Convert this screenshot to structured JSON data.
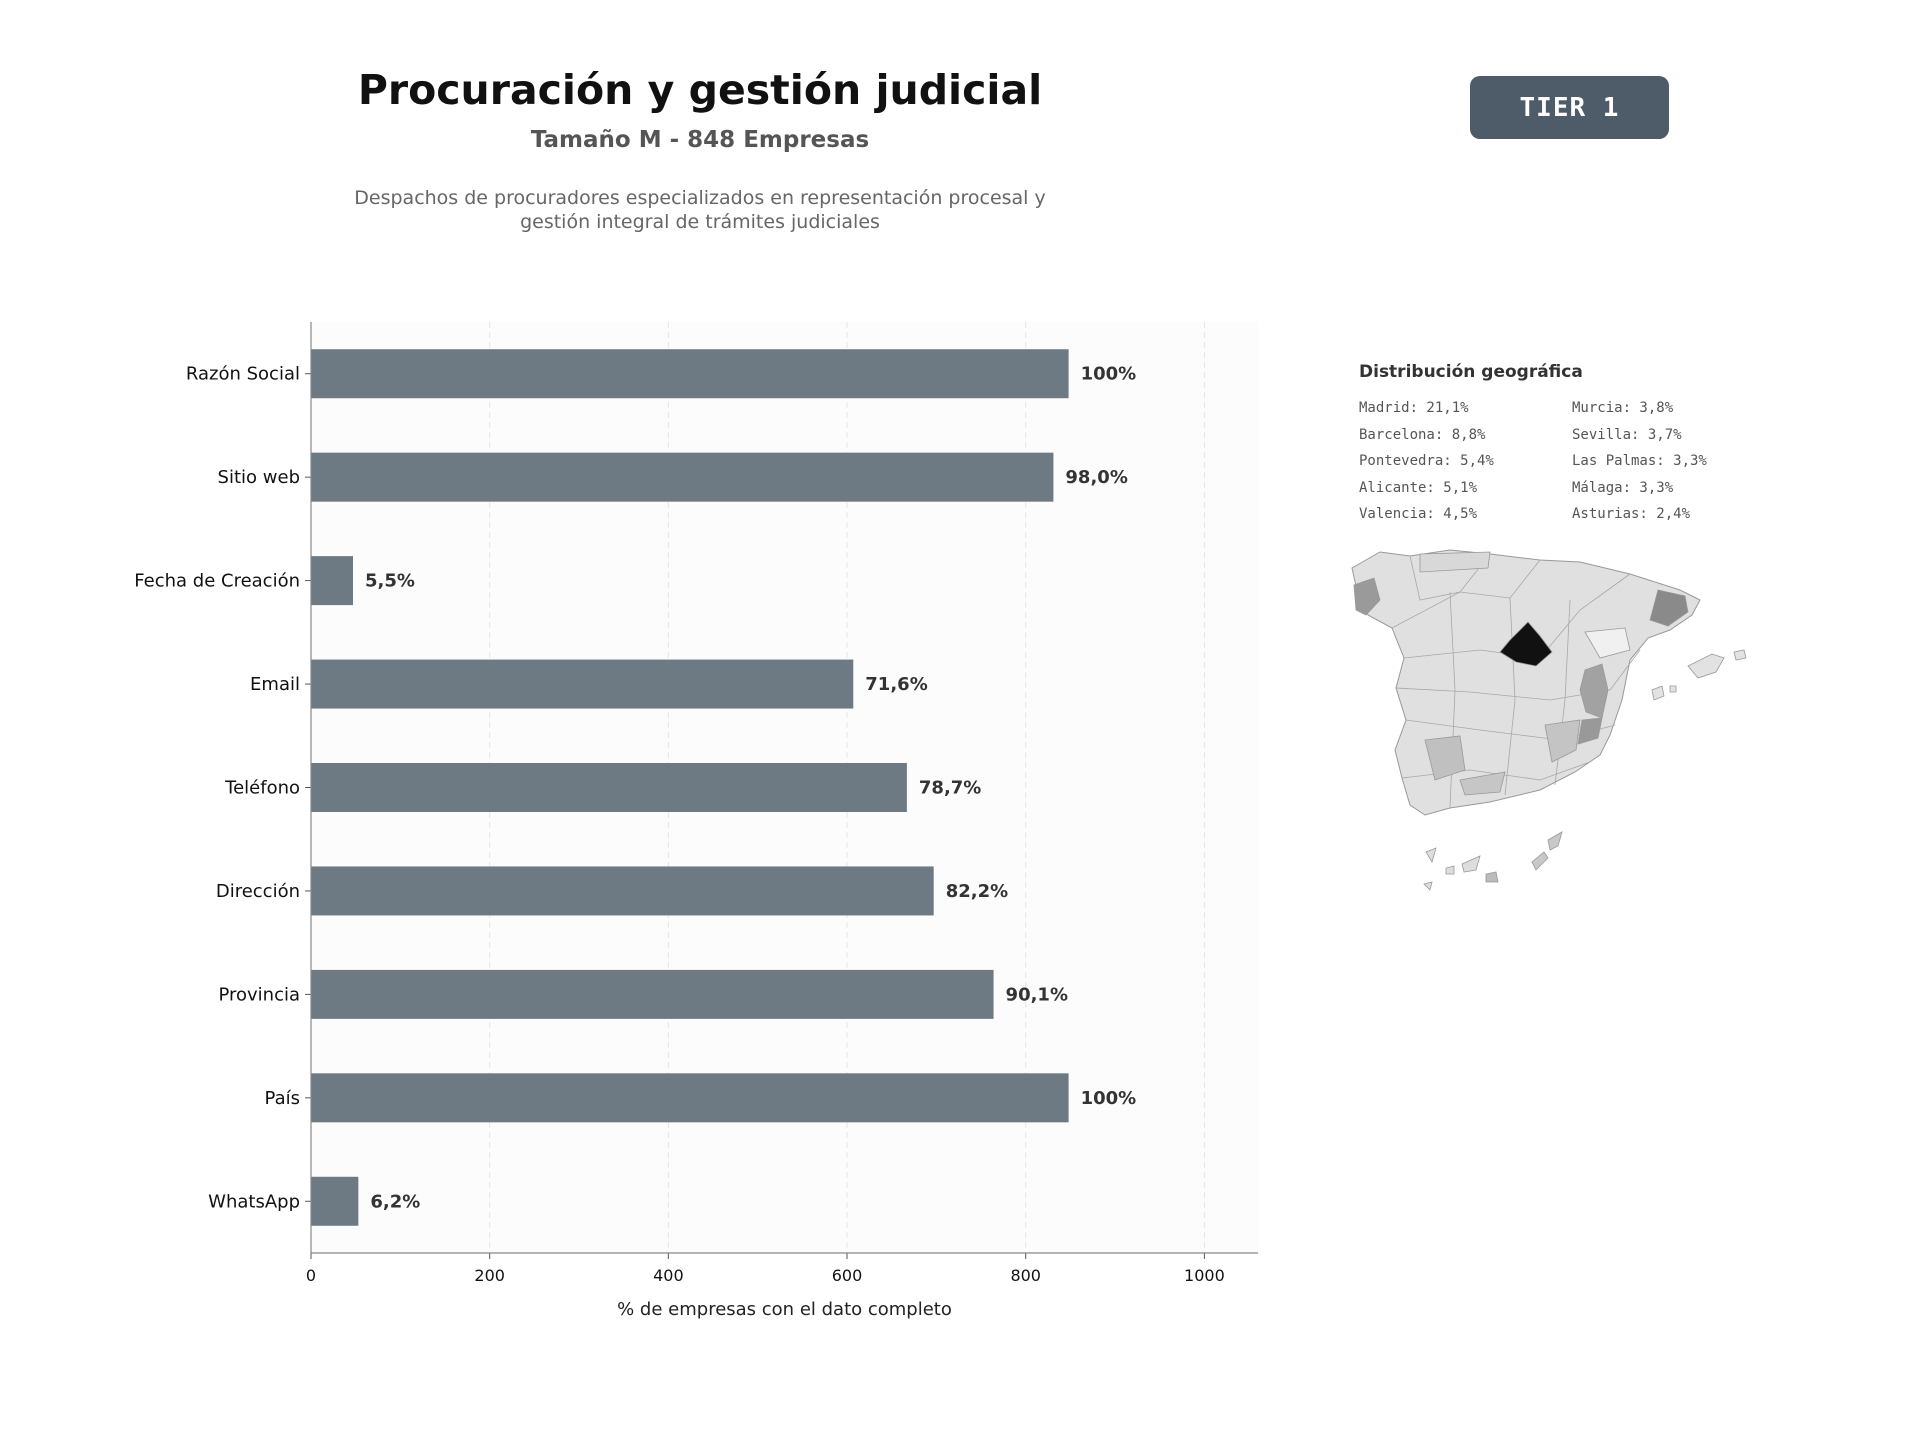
{
  "header": {
    "title": "Procuración y gestión judicial",
    "subtitle": "Tamaño M - 848 Empresas",
    "description_line1": "Despachos de procuradores especializados en representación procesal y",
    "description_line2": "gestión integral de trámites judiciales",
    "tier_badge": "TIER 1"
  },
  "colors": {
    "bar": "#6e7a83",
    "badge": "#4e5b68",
    "plot_background": "#fcfcfc",
    "grid": "#e6e6e6",
    "map_highlight": "#111111"
  },
  "chart_data": {
    "type": "bar",
    "orientation": "horizontal",
    "categories": [
      "Razón Social",
      "Sitio web",
      "Fecha de Creación",
      "Email",
      "Teléfono",
      "Dirección",
      "Provincia",
      "País",
      "WhatsApp"
    ],
    "values": [
      848,
      831,
      47,
      607,
      667,
      697,
      764,
      848,
      53
    ],
    "data_labels": [
      "100%",
      "98,0%",
      "5,5%",
      "71,6%",
      "78,7%",
      "82,2%",
      "90,1%",
      "100%",
      "6,2%"
    ],
    "xlabel": "% de empresas con el dato completo",
    "ylabel": "",
    "xlim": [
      0,
      1060
    ],
    "xticks": [
      0,
      200,
      400,
      600,
      800,
      1000
    ],
    "grid": "vertical dashed"
  },
  "geo": {
    "title": "Distribución geográfica",
    "items": [
      "Madrid: 21,1%",
      "Murcia: 3,8%",
      "Barcelona: 8,8%",
      "Sevilla: 3,7%",
      "Pontevedra: 5,4%",
      "Las Palmas: 3,3%",
      "Alicante: 5,1%",
      "Málaga: 3,3%",
      "Valencia: 4,5%",
      "Asturias: 2,4%"
    ]
  }
}
